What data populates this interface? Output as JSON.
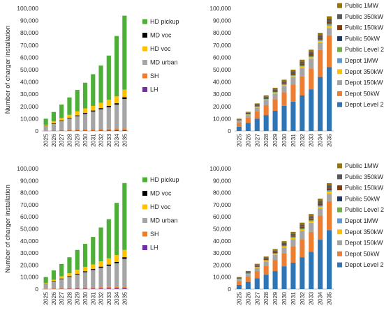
{
  "palette": {
    "LH": "#7030a0",
    "SH": "#ed7d31",
    "MD urban": "#a5a5a5",
    "MD voc": "#000000",
    "HD voc": "#ffc000",
    "HD pickup": "#4daf37",
    "Depot Level 2": "#2e75b6",
    "Depot 50kW": "#ed7d31",
    "Depot 150kW": "#a5a5a5",
    "Depot 350kW": "#ffc000",
    "Depot 1MW": "#5b9bd5",
    "Public Level 2": "#70ad47",
    "Public 50kW": "#203864",
    "Public 150kW": "#843c0c",
    "Public 350kW": "#595959",
    "Public 1MW": "#997300"
  },
  "chart_data": [
    {
      "type": "bar",
      "stacked": true,
      "ylabel": "Number of charger installation",
      "ylim": [
        0,
        100000
      ],
      "yticks": [
        "0",
        "10,000",
        "20,000",
        "30,000",
        "40,000",
        "50,000",
        "60,000",
        "70,000",
        "80,000",
        "90,000",
        "100,000"
      ],
      "categories": [
        "2025",
        "2026",
        "2027",
        "2028",
        "2029",
        "2030",
        "2031",
        "2032",
        "2033",
        "2034",
        "2035"
      ],
      "legend_order": [
        "HD pickup",
        "MD voc",
        "HD voc",
        "MD urban",
        "SH",
        "LH"
      ],
      "series": [
        {
          "name": "LH",
          "values": [
            100,
            150,
            200,
            250,
            300,
            350,
            400,
            450,
            500,
            550,
            600
          ]
        },
        {
          "name": "SH",
          "values": [
            300,
            450,
            600,
            800,
            900,
            1000,
            1100,
            1200,
            1300,
            1400,
            1500
          ]
        },
        {
          "name": "MD urban",
          "values": [
            3600,
            5300,
            7300,
            9000,
            10800,
            12600,
            14300,
            16000,
            17500,
            19500,
            24000
          ]
        },
        {
          "name": "MD voc",
          "values": [
            200,
            400,
            500,
            600,
            700,
            800,
            900,
            1000,
            1100,
            1200,
            1400
          ]
        },
        {
          "name": "HD voc",
          "values": [
            800,
            1500,
            2000,
            2500,
            3300,
            3700,
            3800,
            4400,
            5100,
            5600,
            6200
          ]
        },
        {
          "name": "HD pickup",
          "values": [
            5000,
            7700,
            10900,
            14200,
            17500,
            20900,
            25800,
            30300,
            36000,
            49200,
            60300
          ]
        }
      ]
    },
    {
      "type": "bar",
      "stacked": true,
      "ylabel": "",
      "ylim": [
        0,
        100000
      ],
      "yticks": [
        "0",
        "10,000",
        "20,000",
        "30,000",
        "40,000",
        "50,000",
        "60,000",
        "70,000",
        "80,000",
        "90,000",
        "100,000"
      ],
      "categories": [
        "2025",
        "2026",
        "2027",
        "2028",
        "2029",
        "2030",
        "2031",
        "2032",
        "2033",
        "2034",
        "2035"
      ],
      "legend_order": [
        "Public 1MW",
        "Public 350kW",
        "Public 150kW",
        "Public 50kW",
        "Public Level 2",
        "Depot 1MW",
        "Depot 350kW",
        "Depot 150kW",
        "Depot 50kW",
        "Depot Level 2"
      ],
      "series": [
        {
          "name": "Depot Level 2",
          "values": [
            3500,
            6500,
            10000,
            13000,
            16500,
            20500,
            24000,
            29000,
            34000,
            44000,
            52000
          ]
        },
        {
          "name": "Depot 50kW",
          "values": [
            3000,
            4500,
            6000,
            8000,
            9500,
            11000,
            14000,
            15500,
            17000,
            22000,
            26000
          ]
        },
        {
          "name": "Depot 150kW",
          "values": [
            1500,
            2000,
            3000,
            4000,
            4500,
            5000,
            6000,
            7000,
            8000,
            6000,
            6000
          ]
        },
        {
          "name": "Depot 350kW",
          "values": [
            300,
            400,
            500,
            600,
            700,
            800,
            900,
            1000,
            1100,
            1300,
            2000
          ]
        },
        {
          "name": "Depot 1MW",
          "values": [
            100,
            100,
            200,
            200,
            200,
            300,
            300,
            300,
            400,
            400,
            500
          ]
        },
        {
          "name": "Public Level 2",
          "values": [
            200,
            200,
            300,
            300,
            400,
            400,
            500,
            500,
            600,
            600,
            700
          ]
        },
        {
          "name": "Public 50kW",
          "values": [
            100,
            100,
            200,
            200,
            200,
            200,
            300,
            300,
            300,
            300,
            400
          ]
        },
        {
          "name": "Public 150kW",
          "values": [
            300,
            400,
            500,
            600,
            700,
            800,
            900,
            1000,
            1100,
            1200,
            1400
          ]
        },
        {
          "name": "Public 350kW",
          "values": [
            500,
            700,
            900,
            1100,
            1300,
            1500,
            1700,
            1900,
            2100,
            2300,
            2500
          ]
        },
        {
          "name": "Public 1MW",
          "values": [
            500,
            700,
            900,
            1000,
            1200,
            1300,
            1400,
            1600,
            1700,
            1900,
            2000
          ]
        }
      ]
    },
    {
      "type": "bar",
      "stacked": true,
      "ylabel": "Number of charger installation",
      "ylim": [
        0,
        100000
      ],
      "yticks": [
        "0",
        "10,000",
        "20,000",
        "30,000",
        "40,000",
        "50,000",
        "60,000",
        "70,000",
        "80,000",
        "90,000",
        "100,000"
      ],
      "categories": [
        "2025",
        "2026",
        "2027",
        "2028",
        "2029",
        "2030",
        "2031",
        "2032",
        "2033",
        "2034",
        "2035"
      ],
      "legend_order": [
        "HD pickup",
        "MD voc",
        "HD voc",
        "MD urban",
        "SH",
        "LH"
      ],
      "series": [
        {
          "name": "LH",
          "values": [
            100,
            150,
            200,
            250,
            300,
            350,
            400,
            450,
            500,
            550,
            600
          ]
        },
        {
          "name": "SH",
          "values": [
            300,
            450,
            600,
            800,
            900,
            1000,
            1100,
            1200,
            1300,
            1400,
            1500
          ]
        },
        {
          "name": "MD urban",
          "values": [
            3600,
            5300,
            7300,
            9000,
            10800,
            12600,
            14300,
            16000,
            17500,
            19500,
            23000
          ]
        },
        {
          "name": "MD voc",
          "values": [
            200,
            400,
            500,
            600,
            700,
            800,
            900,
            1000,
            1100,
            1200,
            1400
          ]
        },
        {
          "name": "HD voc",
          "values": [
            800,
            1500,
            2000,
            2500,
            3300,
            3700,
            3800,
            4400,
            5100,
            5600,
            6000
          ]
        },
        {
          "name": "HD pickup",
          "values": [
            5000,
            7700,
            10300,
            13300,
            16500,
            19100,
            22800,
            28100,
            32500,
            43300,
            55500
          ]
        }
      ]
    },
    {
      "type": "bar",
      "stacked": true,
      "ylabel": "",
      "ylim": [
        0,
        100000
      ],
      "yticks": [
        "0",
        "10,000",
        "20,000",
        "30,000",
        "40,000",
        "50,000",
        "60,000",
        "70,000",
        "80,000",
        "90,000",
        "100,000"
      ],
      "categories": [
        "2025",
        "2026",
        "2027",
        "2028",
        "2029",
        "2030",
        "2031",
        "2032",
        "2033",
        "2034",
        "2035"
      ],
      "legend_order": [
        "Public 1MW",
        "Public 350kW",
        "Public 150kW",
        "Public 50kW",
        "Public Level 2",
        "Depot 1MW",
        "Depot 350kW",
        "Depot 150kW",
        "Depot 50kW",
        "Depot Level 2"
      ],
      "series": [
        {
          "name": "Depot Level 2",
          "values": [
            3500,
            6000,
            9000,
            12000,
            15000,
            19000,
            22000,
            26500,
            31000,
            41000,
            49000
          ]
        },
        {
          "name": "Depot 50kW",
          "values": [
            3000,
            4500,
            6000,
            7500,
            9000,
            10500,
            13500,
            15000,
            16500,
            20000,
            24000
          ]
        },
        {
          "name": "Depot 150kW",
          "values": [
            1500,
            2000,
            2500,
            3500,
            4500,
            5000,
            6000,
            7000,
            7500,
            6000,
            6000
          ]
        },
        {
          "name": "Depot 350kW",
          "values": [
            300,
            400,
            500,
            600,
            700,
            800,
            900,
            1000,
            1100,
            1300,
            1800
          ]
        },
        {
          "name": "Depot 1MW",
          "values": [
            100,
            100,
            200,
            200,
            200,
            300,
            300,
            300,
            400,
            400,
            500
          ]
        },
        {
          "name": "Public Level 2",
          "values": [
            200,
            200,
            300,
            300,
            400,
            400,
            500,
            500,
            600,
            600,
            700
          ]
        },
        {
          "name": "Public 50kW",
          "values": [
            100,
            100,
            200,
            200,
            200,
            200,
            300,
            300,
            300,
            300,
            400
          ]
        },
        {
          "name": "Public 150kW",
          "values": [
            300,
            400,
            500,
            600,
            700,
            800,
            900,
            1000,
            1100,
            1200,
            1300
          ]
        },
        {
          "name": "Public 350kW",
          "values": [
            500,
            700,
            900,
            1100,
            1300,
            1500,
            1700,
            1900,
            2100,
            2300,
            2400
          ]
        },
        {
          "name": "Public 1MW",
          "values": [
            500,
            700,
            900,
            1000,
            1200,
            1300,
            1400,
            1600,
            1700,
            1900,
            1800
          ]
        }
      ]
    }
  ]
}
